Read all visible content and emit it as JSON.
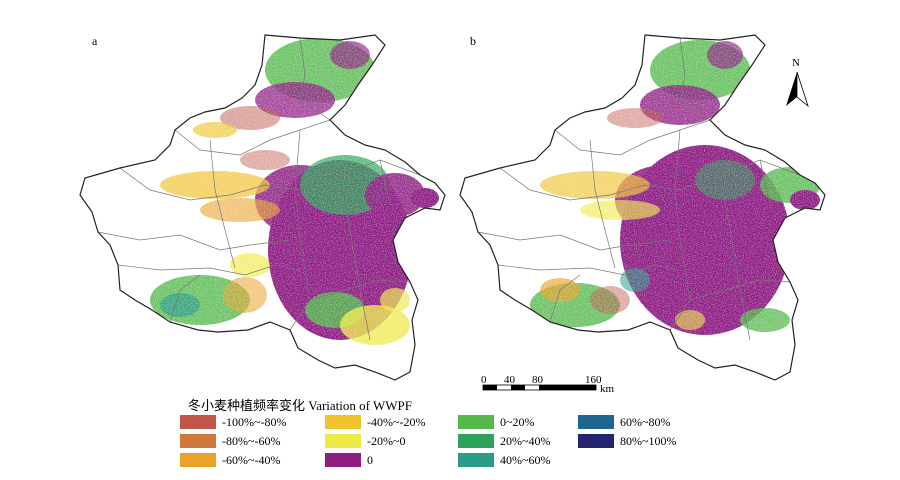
{
  "panels": [
    {
      "label": "a"
    },
    {
      "label": "b"
    }
  ],
  "north_arrow": {
    "label": "N"
  },
  "scale_bar": {
    "ticks": [
      "0",
      "40",
      "80",
      "160"
    ],
    "unit": "km"
  },
  "legend": {
    "title": "冬小麦种植频率变化 Variation of WWPF",
    "items": [
      {
        "label": "-100%~-80%",
        "color": "#c0564a"
      },
      {
        "label": "-80%~-60%",
        "color": "#d2773a"
      },
      {
        "label": "-60%~-40%",
        "color": "#e8a32b"
      },
      {
        "label": "-40%~-20%",
        "color": "#f0c22e"
      },
      {
        "label": "-20%~0",
        "color": "#eeea45"
      },
      {
        "label": "0",
        "color": "#8e1e84"
      },
      {
        "label": "0~20%",
        "color": "#54b84b"
      },
      {
        "label": "20%~40%",
        "color": "#2ca55a"
      },
      {
        "label": "40%~60%",
        "color": "#2a9c88"
      },
      {
        "label": "60%~80%",
        "color": "#1e6690"
      },
      {
        "label": "80%~100%",
        "color": "#23256e"
      }
    ]
  }
}
